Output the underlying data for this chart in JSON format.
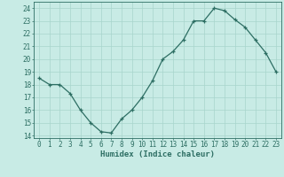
{
  "x": [
    0,
    1,
    2,
    3,
    4,
    5,
    6,
    7,
    8,
    9,
    10,
    11,
    12,
    13,
    14,
    15,
    16,
    17,
    18,
    19,
    20,
    21,
    22,
    23
  ],
  "y": [
    18.5,
    18.0,
    18.0,
    17.3,
    16.0,
    15.0,
    14.3,
    14.2,
    15.3,
    16.0,
    17.0,
    18.3,
    20.0,
    20.6,
    21.5,
    23.0,
    23.0,
    24.0,
    23.8,
    23.1,
    22.5,
    21.5,
    20.5,
    19.0
  ],
  "line_color": "#2d6e63",
  "bg_color": "#c8ebe5",
  "grid_color": "#a8d5cc",
  "xlabel": "Humidex (Indice chaleur)",
  "ylabel_ticks": [
    14,
    15,
    16,
    17,
    18,
    19,
    20,
    21,
    22,
    23,
    24
  ],
  "ylim": [
    13.8,
    24.5
  ],
  "xlim": [
    -0.5,
    23.5
  ],
  "xticks": [
    0,
    1,
    2,
    3,
    4,
    5,
    6,
    7,
    8,
    9,
    10,
    11,
    12,
    13,
    14,
    15,
    16,
    17,
    18,
    19,
    20,
    21,
    22,
    23
  ],
  "label_fontsize": 6.5,
  "tick_fontsize": 5.5,
  "marker_size": 3.0,
  "line_width": 0.9
}
